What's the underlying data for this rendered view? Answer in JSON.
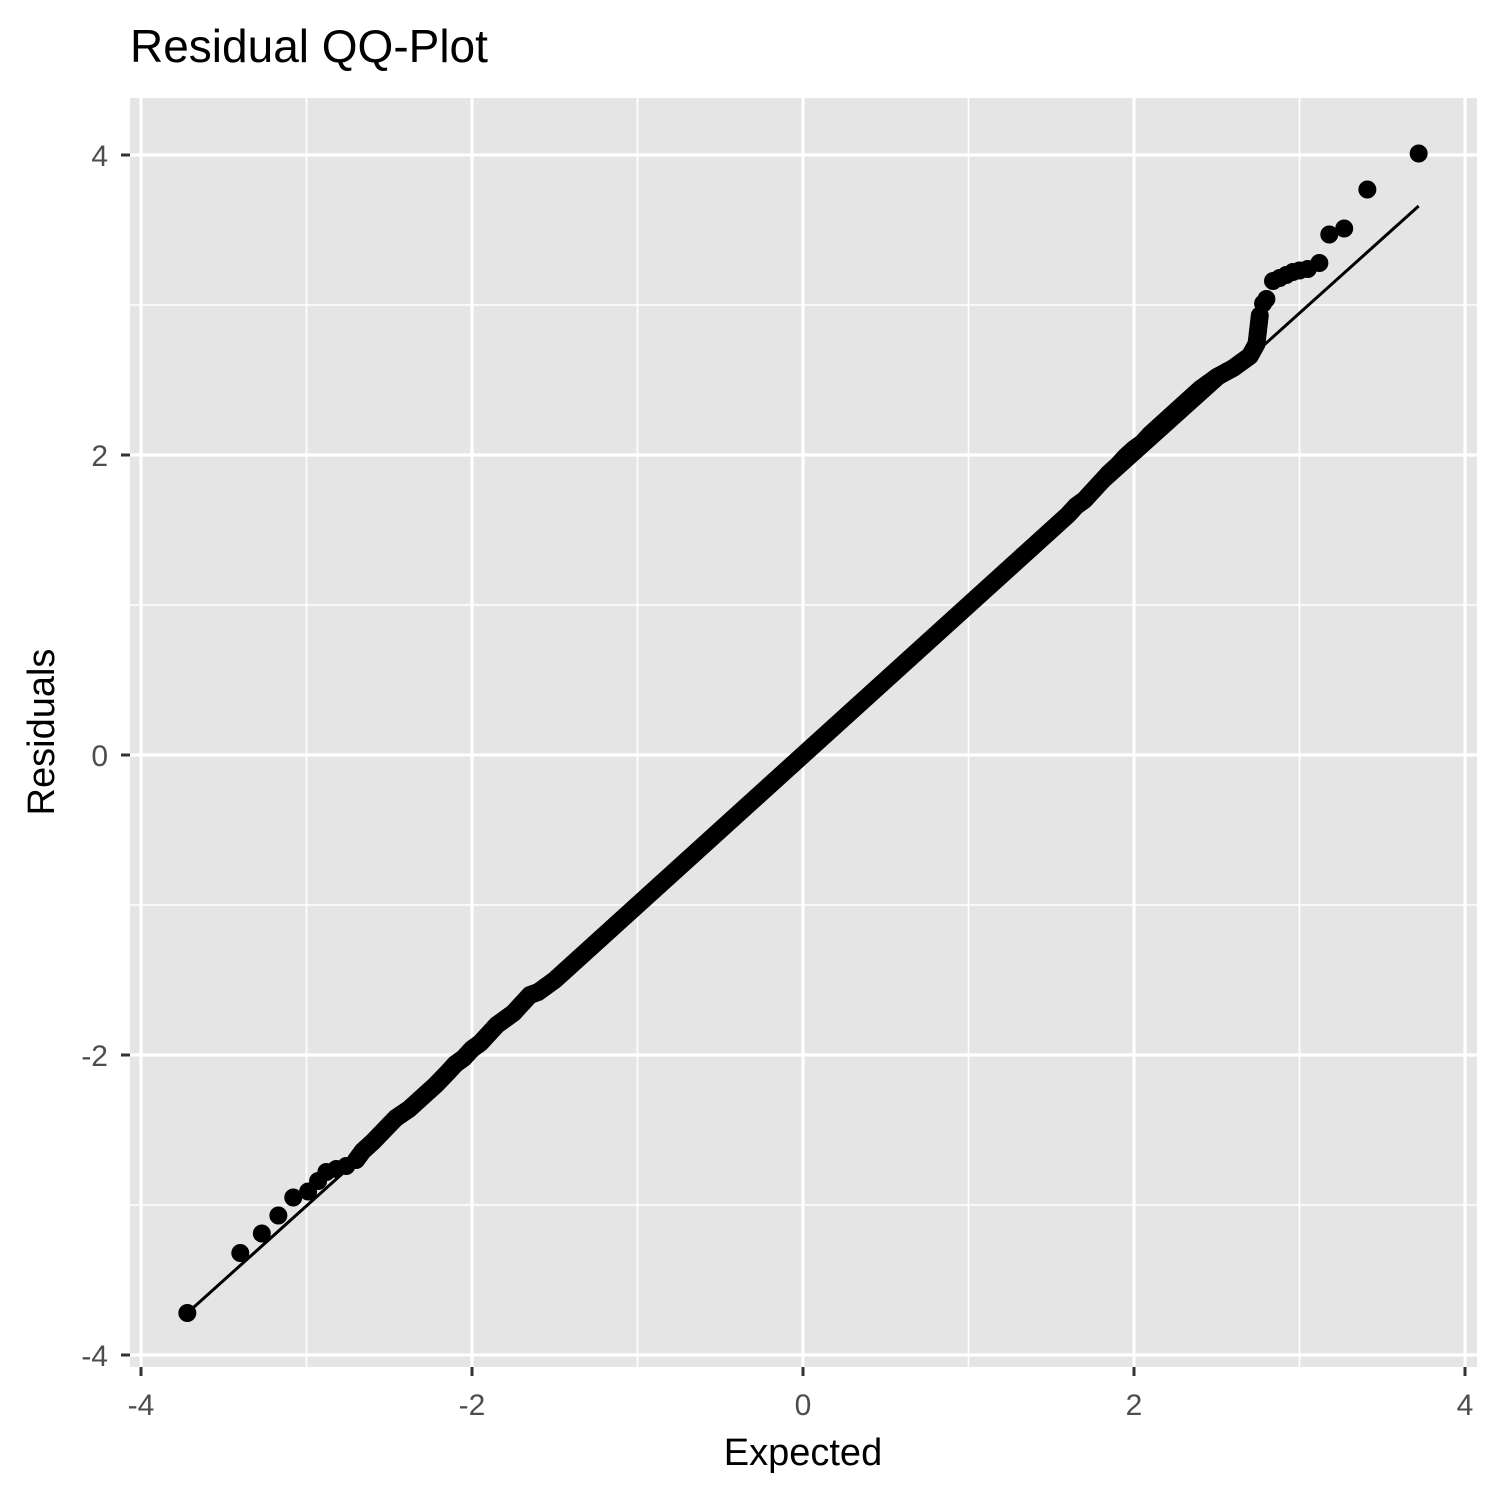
{
  "chart_data": {
    "type": "scatter",
    "title": "Residual QQ-Plot",
    "xlabel": "Expected",
    "ylabel": "Residuals",
    "xlim": [
      -4,
      4
    ],
    "ylim": [
      -4,
      4
    ],
    "x_ticks": [
      -4,
      -2,
      0,
      2,
      4
    ],
    "y_ticks": [
      -4,
      -2,
      0,
      2,
      4
    ],
    "x_tick_labels": [
      "-4",
      "-2",
      "0",
      "2",
      "4"
    ],
    "y_tick_labels": [
      "-4",
      "-2",
      "0",
      "2",
      "4"
    ],
    "grid": true,
    "legend": "none",
    "colors": {
      "panel": "#e5e5e5",
      "grid": "#ffffff",
      "points": "#000000",
      "line": "#000000",
      "ticks": "#333333"
    },
    "reference_line": {
      "x": [
        -3.72,
        3.72
      ],
      "y": [
        -3.72,
        3.66
      ]
    },
    "points": {
      "x": [
        -3.72,
        -3.4,
        -3.27,
        -3.17,
        -3.08,
        -2.99,
        -2.93,
        -2.88,
        -2.82,
        -2.76,
        -2.7,
        -2.66,
        -2.6,
        -2.53,
        -2.46,
        -2.38,
        -2.3,
        -2.22,
        -2.15,
        -2.1,
        -2.05,
        -2.0,
        -1.95,
        -1.9,
        -1.85,
        -1.8,
        -1.75,
        -1.7,
        -1.65,
        -1.6,
        -1.5,
        -1.4,
        -1.3,
        -1.2,
        -1.1,
        -1.0,
        -0.9,
        -0.8,
        -0.7,
        -0.6,
        -0.5,
        -0.4,
        -0.3,
        -0.2,
        -0.1,
        0.0,
        0.1,
        0.2,
        0.3,
        0.4,
        0.5,
        0.6,
        0.7,
        0.8,
        0.9,
        1.0,
        1.1,
        1.2,
        1.3,
        1.4,
        1.5,
        1.6,
        1.65,
        1.7,
        1.75,
        1.8,
        1.85,
        1.9,
        1.95,
        2.0,
        2.05,
        2.1,
        2.15,
        2.2,
        2.3,
        2.4,
        2.5,
        2.6,
        2.65,
        2.7,
        2.74,
        2.76,
        2.78,
        2.8,
        2.84,
        2.88,
        2.92,
        2.96,
        3.0,
        3.05,
        3.12,
        3.18,
        3.27,
        3.41,
        3.72
      ],
      "y": [
        -3.72,
        -3.32,
        -3.19,
        -3.07,
        -2.95,
        -2.91,
        -2.84,
        -2.78,
        -2.76,
        -2.74,
        -2.7,
        -2.64,
        -2.58,
        -2.5,
        -2.42,
        -2.36,
        -2.28,
        -2.2,
        -2.12,
        -2.06,
        -2.02,
        -1.96,
        -1.92,
        -1.86,
        -1.8,
        -1.76,
        -1.72,
        -1.66,
        -1.6,
        -1.58,
        -1.5,
        -1.4,
        -1.3,
        -1.2,
        -1.1,
        -1.0,
        -0.9,
        -0.8,
        -0.7,
        -0.6,
        -0.5,
        -0.4,
        -0.3,
        -0.2,
        -0.1,
        0.0,
        0.1,
        0.2,
        0.3,
        0.4,
        0.5,
        0.6,
        0.7,
        0.8,
        0.9,
        1.0,
        1.1,
        1.2,
        1.3,
        1.4,
        1.5,
        1.6,
        1.66,
        1.7,
        1.76,
        1.82,
        1.88,
        1.93,
        1.99,
        2.04,
        2.08,
        2.14,
        2.19,
        2.24,
        2.34,
        2.44,
        2.52,
        2.58,
        2.62,
        2.66,
        2.74,
        2.93,
        3.01,
        3.04,
        3.16,
        3.18,
        3.2,
        3.22,
        3.23,
        3.24,
        3.28,
        3.47,
        3.51,
        3.77,
        4.01
      ]
    }
  }
}
